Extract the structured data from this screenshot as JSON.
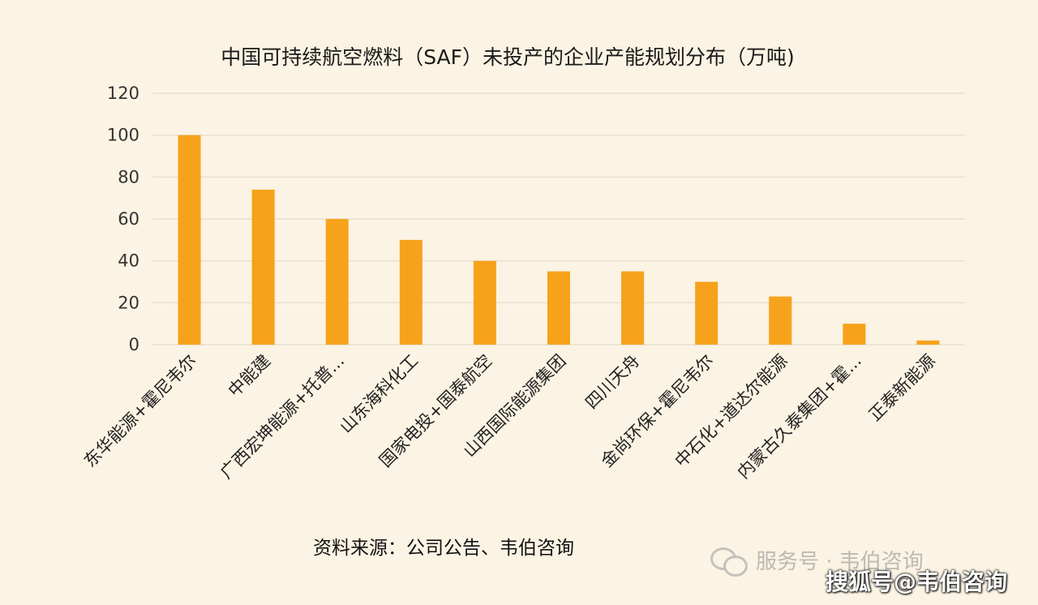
{
  "chart_data": {
    "type": "bar",
    "title": "中国可持续航空燃料（SAF）未投产的企业产能规划分布（万吨)",
    "xlabel": "",
    "ylabel": "",
    "categories": [
      "东华能源+霍尼韦尔",
      "中能建",
      "广西宏坤能源+托普...",
      "山东海科化工",
      "国家电投+国泰航空",
      "山西国际能源集团",
      "四川天舟",
      "金尚环保+霍尼韦尔",
      "中石化+道达尔能源",
      "内蒙古久泰集团+霍...",
      "正泰新能源"
    ],
    "values": [
      100,
      74,
      60,
      50,
      40,
      35,
      35,
      30,
      23,
      10,
      2
    ],
    "ylim": [
      0,
      120
    ],
    "yticks": [
      0,
      20,
      40,
      60,
      80,
      100,
      120
    ],
    "grid": true,
    "legend": "none",
    "bar_color": "#f7a21b",
    "grid_color": "#e4dccb"
  },
  "source_note": "资料来源：公司公告、韦伯咨询",
  "watermarks": {
    "wechat_icon": "wechat-icon",
    "wechat_text": "服务号 · 韦伯咨询",
    "sohu_text": "搜狐号@韦伯咨询"
  }
}
